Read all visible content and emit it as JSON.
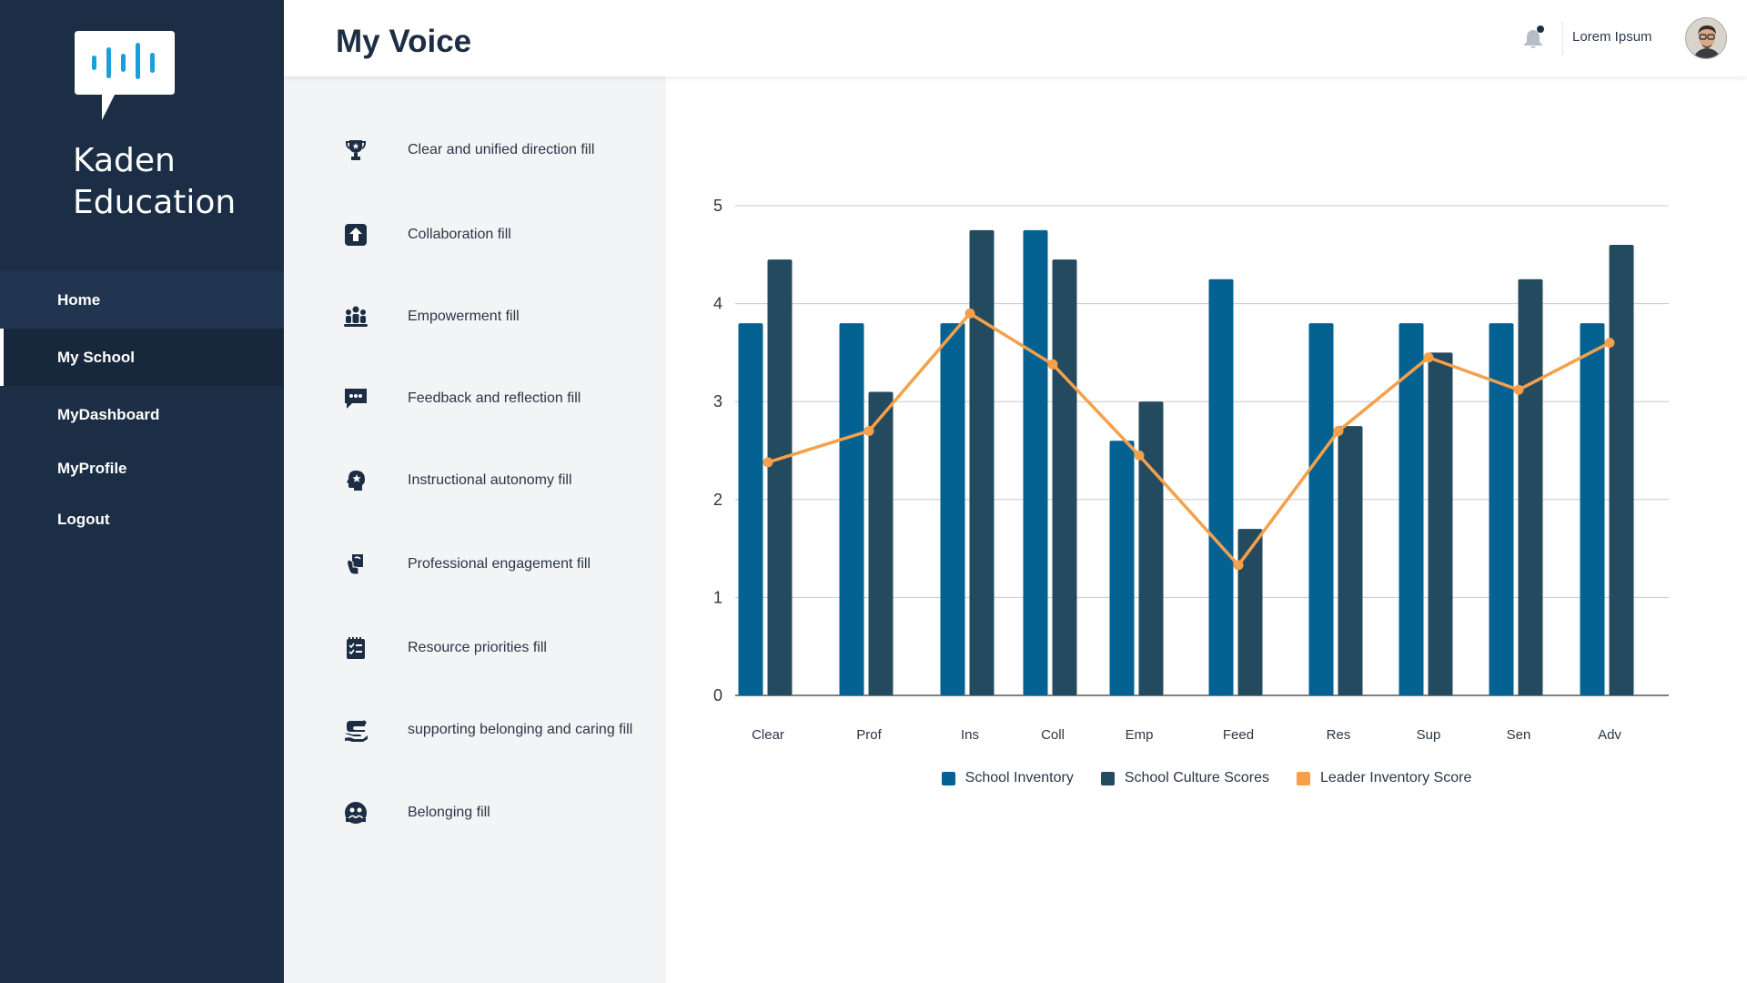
{
  "app": {
    "brand_line1": "Kaden",
    "brand_line2": "Education"
  },
  "nav": [
    {
      "label": "Home"
    },
    {
      "label": "My School"
    },
    {
      "label": "MyDashboard"
    },
    {
      "label": "MyProfile"
    },
    {
      "label": "Logout"
    }
  ],
  "header": {
    "title": "My Voice",
    "username": "Lorem Ipsum",
    "notification_dot": true
  },
  "categories": [
    {
      "label": "Clear and unified direction fill",
      "icon": "trophy-icon"
    },
    {
      "label": "Collaboration fill",
      "icon": "upload-box-icon"
    },
    {
      "label": "Empowerment fill",
      "icon": "group-icon"
    },
    {
      "label": "Feedback and reflection fill",
      "icon": "chat-bubble-icon"
    },
    {
      "label": "Instructional autonomy fill",
      "icon": "head-star-icon"
    },
    {
      "label": "Professional engagement fill",
      "icon": "hand-card-icon"
    },
    {
      "label": "Resource priorities fill",
      "icon": "checklist-icon"
    },
    {
      "label": "supporting belonging and caring fill",
      "icon": "hand-care-icon"
    },
    {
      "label": "Belonging fill",
      "icon": "people-circle-icon"
    }
  ],
  "colors": {
    "sidebar": "#1b2e45",
    "inventory": "#046293",
    "culture": "#244a5f",
    "leader": "#f5a04a"
  },
  "chart_data": {
    "type": "bar",
    "categories": [
      "Clear",
      "Prof",
      "Ins",
      "Coll",
      "Emp",
      "Feed",
      "Res",
      "Sup",
      "Sen",
      "Adv"
    ],
    "ylim": [
      0,
      5
    ],
    "yticks": [
      0,
      1,
      2,
      3,
      4,
      5
    ],
    "grid": true,
    "legend_position": "bottom",
    "series": [
      {
        "name": "School Inventory",
        "type": "bar",
        "values": [
          3.8,
          3.8,
          3.8,
          4.75,
          2.6,
          4.25,
          3.8,
          3.8,
          3.8,
          3.8
        ]
      },
      {
        "name": "School Culture Scores",
        "type": "bar",
        "values": [
          4.45,
          3.1,
          4.75,
          4.45,
          3.0,
          1.7,
          2.75,
          3.5,
          4.25,
          4.6
        ]
      },
      {
        "name": "Leader Inventory Score",
        "type": "line",
        "values": [
          2.38,
          2.7,
          3.9,
          3.38,
          2.45,
          1.33,
          2.7,
          3.45,
          3.12,
          3.6
        ]
      }
    ]
  }
}
